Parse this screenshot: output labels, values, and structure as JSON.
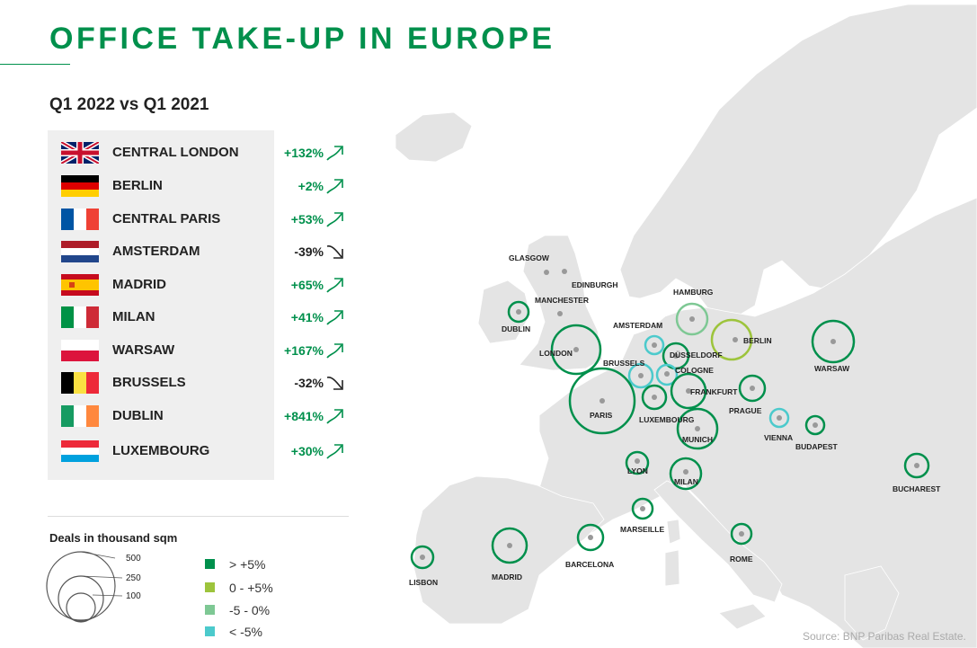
{
  "title": "OFFICE TAKE-UP IN EUROPE",
  "subtitle": "Q1 2022 vs Q1 2021",
  "source": "Source: BNP Paribas Real Estate.",
  "markets": [
    {
      "city": "CENTRAL LONDON",
      "change": "+132%",
      "direction": "up",
      "flag": "gb"
    },
    {
      "city": "BERLIN",
      "change": "+2%",
      "direction": "up",
      "flag": "de"
    },
    {
      "city": "CENTRAL PARIS",
      "change": "+53%",
      "direction": "up",
      "flag": "fr"
    },
    {
      "city": "AMSTERDAM",
      "change": "-39%",
      "direction": "down",
      "flag": "nl"
    },
    {
      "city": "MADRID",
      "change": "+65%",
      "direction": "up",
      "flag": "es"
    },
    {
      "city": "MILAN",
      "change": "+41%",
      "direction": "up",
      "flag": "it"
    },
    {
      "city": "WARSAW",
      "change": "+167%",
      "direction": "up",
      "flag": "pl"
    },
    {
      "city": "BRUSSELS",
      "change": "-32%",
      "direction": "down",
      "flag": "be"
    },
    {
      "city": "DUBLIN",
      "change": "+841%",
      "direction": "up",
      "flag": "ie"
    },
    {
      "city": "LUXEMBOURG",
      "change": "+30%",
      "direction": "up",
      "flag": "lu"
    }
  ],
  "legend": {
    "size_title": "Deals in thousand sqm",
    "size_values": [
      "500",
      "250",
      "100"
    ],
    "color_classes": [
      {
        "label": "> +5%",
        "color": "#00904c"
      },
      {
        "label": "0 - +5%",
        "color": "#9dc43c"
      },
      {
        "label": "-5 - 0%",
        "color": "#7ec894"
      },
      {
        "label": "< -5%",
        "color": "#4ccacc"
      }
    ]
  },
  "colors": {
    "accent": "#00904c",
    "land": "#e4e4e4",
    "up": "#00904c",
    "down": "#222222"
  },
  "map_cities": [
    {
      "name": "GLASGOW",
      "bubble": false
    },
    {
      "name": "EDINBURGH",
      "bubble": false
    },
    {
      "name": "MANCHESTER",
      "bubble": false
    },
    {
      "name": "DUBLIN",
      "bubble": true,
      "class": "> +5%"
    },
    {
      "name": "LONDON",
      "bubble": true,
      "class": "> +5%"
    },
    {
      "name": "HAMBURG",
      "bubble": true,
      "class": "-5 - 0%"
    },
    {
      "name": "AMSTERDAM",
      "bubble": true,
      "class": "< -5%"
    },
    {
      "name": "DÜSSELDORF",
      "bubble": true,
      "class": "> +5%"
    },
    {
      "name": "BERLIN",
      "bubble": true,
      "class": "0 - +5%"
    },
    {
      "name": "WARSAW",
      "bubble": true,
      "class": "> +5%"
    },
    {
      "name": "BRUSSELS",
      "bubble": true,
      "class": "< -5%"
    },
    {
      "name": "COLOGNE",
      "bubble": true,
      "class": "< -5%"
    },
    {
      "name": "FRANKFURT",
      "bubble": true,
      "class": "> +5%"
    },
    {
      "name": "PRAGUE",
      "bubble": true,
      "class": "> +5%"
    },
    {
      "name": "PARIS",
      "bubble": true,
      "class": "> +5%"
    },
    {
      "name": "LUXEMBOURG",
      "bubble": true,
      "class": "> +5%"
    },
    {
      "name": "MUNICH",
      "bubble": true,
      "class": "> +5%"
    },
    {
      "name": "VIENNA",
      "bubble": true,
      "class": "< -5%"
    },
    {
      "name": "BUDAPEST",
      "bubble": true,
      "class": "> +5%"
    },
    {
      "name": "LYON",
      "bubble": true,
      "class": "> +5%"
    },
    {
      "name": "MILAN",
      "bubble": true,
      "class": "> +5%"
    },
    {
      "name": "BUCHAREST",
      "bubble": true,
      "class": "> +5%"
    },
    {
      "name": "MARSEILLE",
      "bubble": true,
      "class": "> +5%"
    },
    {
      "name": "BARCELONA",
      "bubble": true,
      "class": "> +5%"
    },
    {
      "name": "MADRID",
      "bubble": true,
      "class": "> +5%"
    },
    {
      "name": "LISBON",
      "bubble": true,
      "class": "> +5%"
    },
    {
      "name": "ROME",
      "bubble": true,
      "class": "> +5%"
    }
  ]
}
